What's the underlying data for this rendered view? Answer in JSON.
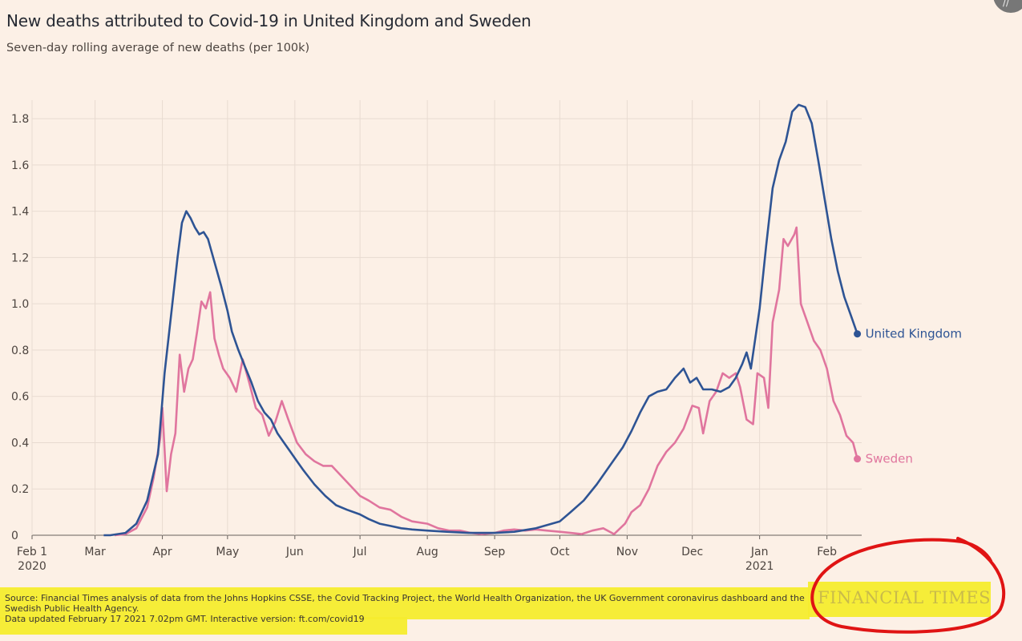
{
  "header": {
    "title": "New deaths attributed to Covid-19 in United Kingdom and Sweden",
    "subtitle": "Seven-day rolling average of new deaths (per 100k)"
  },
  "footer": {
    "source_line1": "Source: Financial Times analysis of data from the Johns Hopkins CSSE, the Covid Tracking Project, the World Health Organization, the UK Government coronavirus dashboard and the",
    "source_line2": "Swedish Public Health Agency.",
    "updated": "Data updated February 17 2021 7.02pm GMT. Interactive version: ft.com/covid19",
    "brand": "FINANCIAL TIMES"
  },
  "colors": {
    "uk": "#2e5494",
    "sweden": "#e0759e",
    "highlight": "#f6ec2e",
    "annotation_circle": "#e01414"
  },
  "icons": {
    "corner": "diagonal-lines-icon"
  },
  "chart_data": {
    "type": "line",
    "title": "New deaths attributed to Covid-19 in United Kingdom and Sweden",
    "subtitle": "Seven-day rolling average of new deaths (per 100k)",
    "xlabel": "",
    "ylabel": "",
    "x_range": [
      "2020-02-01",
      "2021-02-17"
    ],
    "ylim": [
      0,
      1.88
    ],
    "y_ticks": [
      0,
      0.2,
      0.4,
      0.6,
      0.8,
      1.0,
      1.2,
      1.4,
      1.6,
      1.8
    ],
    "y_tick_labels": [
      "0",
      "0.2",
      "0.4",
      "0.6",
      "0.8",
      "1.0",
      "1.2",
      "1.4",
      "1.6",
      "1.8"
    ],
    "x_ticks": [
      {
        "date": "2020-02-01",
        "label": "Feb 1",
        "label2": "2020"
      },
      {
        "date": "2020-03-01",
        "label": "Mar"
      },
      {
        "date": "2020-04-01",
        "label": "Apr"
      },
      {
        "date": "2020-05-01",
        "label": "May"
      },
      {
        "date": "2020-06-01",
        "label": "Jun"
      },
      {
        "date": "2020-07-01",
        "label": "Jul"
      },
      {
        "date": "2020-08-01",
        "label": "Aug"
      },
      {
        "date": "2020-09-01",
        "label": "Sep"
      },
      {
        "date": "2020-10-01",
        "label": "Oct"
      },
      {
        "date": "2020-11-01",
        "label": "Nov"
      },
      {
        "date": "2020-12-01",
        "label": "Dec"
      },
      {
        "date": "2021-01-01",
        "label": "Jan",
        "label2": "2021"
      },
      {
        "date": "2021-02-01",
        "label": "Feb"
      }
    ],
    "grid": true,
    "series": [
      {
        "name": "United Kingdom",
        "points": [
          [
            "2020-03-05",
            0
          ],
          [
            "2020-03-08",
            0
          ],
          [
            "2020-03-15",
            0.01
          ],
          [
            "2020-03-20",
            0.05
          ],
          [
            "2020-03-25",
            0.15
          ],
          [
            "2020-03-30",
            0.35
          ],
          [
            "2020-04-02",
            0.7
          ],
          [
            "2020-04-05",
            0.95
          ],
          [
            "2020-04-08",
            1.2
          ],
          [
            "2020-04-10",
            1.35
          ],
          [
            "2020-04-12",
            1.4
          ],
          [
            "2020-04-14",
            1.37
          ],
          [
            "2020-04-16",
            1.33
          ],
          [
            "2020-04-18",
            1.3
          ],
          [
            "2020-04-20",
            1.31
          ],
          [
            "2020-04-22",
            1.28
          ],
          [
            "2020-04-25",
            1.18
          ],
          [
            "2020-04-28",
            1.08
          ],
          [
            "2020-05-01",
            0.97
          ],
          [
            "2020-05-03",
            0.88
          ],
          [
            "2020-05-06",
            0.8
          ],
          [
            "2020-05-09",
            0.73
          ],
          [
            "2020-05-12",
            0.66
          ],
          [
            "2020-05-15",
            0.58
          ],
          [
            "2020-05-18",
            0.53
          ],
          [
            "2020-05-21",
            0.5
          ],
          [
            "2020-05-24",
            0.44
          ],
          [
            "2020-05-27",
            0.4
          ],
          [
            "2020-05-30",
            0.36
          ],
          [
            "2020-06-02",
            0.32
          ],
          [
            "2020-06-05",
            0.28
          ],
          [
            "2020-06-10",
            0.22
          ],
          [
            "2020-06-15",
            0.17
          ],
          [
            "2020-06-20",
            0.13
          ],
          [
            "2020-06-25",
            0.11
          ],
          [
            "2020-07-01",
            0.09
          ],
          [
            "2020-07-05",
            0.07
          ],
          [
            "2020-07-10",
            0.05
          ],
          [
            "2020-07-15",
            0.04
          ],
          [
            "2020-07-20",
            0.03
          ],
          [
            "2020-07-25",
            0.025
          ],
          [
            "2020-08-01",
            0.02
          ],
          [
            "2020-08-10",
            0.015
          ],
          [
            "2020-08-20",
            0.01
          ],
          [
            "2020-09-01",
            0.01
          ],
          [
            "2020-09-10",
            0.015
          ],
          [
            "2020-09-20",
            0.03
          ],
          [
            "2020-10-01",
            0.06
          ],
          [
            "2020-10-06",
            0.1
          ],
          [
            "2020-10-12",
            0.15
          ],
          [
            "2020-10-18",
            0.22
          ],
          [
            "2020-10-24",
            0.3
          ],
          [
            "2020-10-30",
            0.38
          ],
          [
            "2020-11-03",
            0.45
          ],
          [
            "2020-11-07",
            0.53
          ],
          [
            "2020-11-11",
            0.6
          ],
          [
            "2020-11-15",
            0.62
          ],
          [
            "2020-11-19",
            0.63
          ],
          [
            "2020-11-23",
            0.68
          ],
          [
            "2020-11-27",
            0.72
          ],
          [
            "2020-11-30",
            0.66
          ],
          [
            "2020-12-03",
            0.68
          ],
          [
            "2020-12-06",
            0.63
          ],
          [
            "2020-12-10",
            0.63
          ],
          [
            "2020-12-14",
            0.62
          ],
          [
            "2020-12-18",
            0.64
          ],
          [
            "2020-12-21",
            0.68
          ],
          [
            "2020-12-24",
            0.74
          ],
          [
            "2020-12-26",
            0.79
          ],
          [
            "2020-12-28",
            0.72
          ],
          [
            "2021-01-01",
            0.98
          ],
          [
            "2021-01-04",
            1.25
          ],
          [
            "2021-01-07",
            1.5
          ],
          [
            "2021-01-10",
            1.62
          ],
          [
            "2021-01-13",
            1.7
          ],
          [
            "2021-01-16",
            1.83
          ],
          [
            "2021-01-19",
            1.86
          ],
          [
            "2021-01-22",
            1.85
          ],
          [
            "2021-01-25",
            1.78
          ],
          [
            "2021-01-28",
            1.62
          ],
          [
            "2021-01-31",
            1.45
          ],
          [
            "2021-02-03",
            1.28
          ],
          [
            "2021-02-06",
            1.14
          ],
          [
            "2021-02-09",
            1.03
          ],
          [
            "2021-02-12",
            0.95
          ],
          [
            "2021-02-15",
            0.87
          ]
        ],
        "end_value": 0.87
      },
      {
        "name": "Sweden",
        "points": [
          [
            "2020-03-10",
            0
          ],
          [
            "2020-03-15",
            0.005
          ],
          [
            "2020-03-20",
            0.03
          ],
          [
            "2020-03-25",
            0.12
          ],
          [
            "2020-03-28",
            0.25
          ],
          [
            "2020-03-31",
            0.42
          ],
          [
            "2020-04-01",
            0.55
          ],
          [
            "2020-04-03",
            0.19
          ],
          [
            "2020-04-05",
            0.35
          ],
          [
            "2020-04-07",
            0.44
          ],
          [
            "2020-04-09",
            0.78
          ],
          [
            "2020-04-11",
            0.62
          ],
          [
            "2020-04-13",
            0.72
          ],
          [
            "2020-04-15",
            0.76
          ],
          [
            "2020-04-17",
            0.88
          ],
          [
            "2020-04-19",
            1.01
          ],
          [
            "2020-04-21",
            0.98
          ],
          [
            "2020-04-23",
            1.05
          ],
          [
            "2020-04-25",
            0.85
          ],
          [
            "2020-04-27",
            0.78
          ],
          [
            "2020-04-29",
            0.72
          ],
          [
            "2020-05-02",
            0.68
          ],
          [
            "2020-05-05",
            0.62
          ],
          [
            "2020-05-08",
            0.76
          ],
          [
            "2020-05-11",
            0.66
          ],
          [
            "2020-05-14",
            0.55
          ],
          [
            "2020-05-17",
            0.52
          ],
          [
            "2020-05-20",
            0.43
          ],
          [
            "2020-05-23",
            0.49
          ],
          [
            "2020-05-26",
            0.58
          ],
          [
            "2020-05-29",
            0.5
          ],
          [
            "2020-06-02",
            0.4
          ],
          [
            "2020-06-06",
            0.35
          ],
          [
            "2020-06-10",
            0.32
          ],
          [
            "2020-06-14",
            0.3
          ],
          [
            "2020-06-18",
            0.3
          ],
          [
            "2020-06-22",
            0.26
          ],
          [
            "2020-06-26",
            0.22
          ],
          [
            "2020-07-01",
            0.17
          ],
          [
            "2020-07-05",
            0.15
          ],
          [
            "2020-07-10",
            0.12
          ],
          [
            "2020-07-15",
            0.11
          ],
          [
            "2020-07-20",
            0.08
          ],
          [
            "2020-07-25",
            0.06
          ],
          [
            "2020-08-01",
            0.05
          ],
          [
            "2020-08-06",
            0.03
          ],
          [
            "2020-08-11",
            0.02
          ],
          [
            "2020-08-16",
            0.02
          ],
          [
            "2020-08-21",
            0.01
          ],
          [
            "2020-08-26",
            0.005
          ],
          [
            "2020-09-01",
            0.01
          ],
          [
            "2020-09-05",
            0.02
          ],
          [
            "2020-09-10",
            0.025
          ],
          [
            "2020-09-15",
            0.02
          ],
          [
            "2020-09-20",
            0.025
          ],
          [
            "2020-09-25",
            0.02
          ],
          [
            "2020-10-01",
            0.015
          ],
          [
            "2020-10-06",
            0.01
          ],
          [
            "2020-10-11",
            0.005
          ],
          [
            "2020-10-16",
            0.02
          ],
          [
            "2020-10-21",
            0.03
          ],
          [
            "2020-10-26",
            0.005
          ],
          [
            "2020-10-31",
            0.05
          ],
          [
            "2020-11-03",
            0.1
          ],
          [
            "2020-11-07",
            0.13
          ],
          [
            "2020-11-11",
            0.2
          ],
          [
            "2020-11-15",
            0.3
          ],
          [
            "2020-11-19",
            0.36
          ],
          [
            "2020-11-23",
            0.4
          ],
          [
            "2020-11-27",
            0.46
          ],
          [
            "2020-12-01",
            0.56
          ],
          [
            "2020-12-04",
            0.55
          ],
          [
            "2020-12-06",
            0.44
          ],
          [
            "2020-12-09",
            0.58
          ],
          [
            "2020-12-12",
            0.62
          ],
          [
            "2020-12-15",
            0.7
          ],
          [
            "2020-12-18",
            0.68
          ],
          [
            "2020-12-21",
            0.7
          ],
          [
            "2020-12-23",
            0.64
          ],
          [
            "2020-12-26",
            0.5
          ],
          [
            "2020-12-29",
            0.48
          ],
          [
            "2020-12-31",
            0.7
          ],
          [
            "2021-01-03",
            0.68
          ],
          [
            "2021-01-05",
            0.55
          ],
          [
            "2021-01-07",
            0.92
          ],
          [
            "2021-01-10",
            1.06
          ],
          [
            "2021-01-12",
            1.28
          ],
          [
            "2021-01-14",
            1.25
          ],
          [
            "2021-01-17",
            1.3
          ],
          [
            "2021-01-18",
            1.33
          ],
          [
            "2021-01-20",
            1.0
          ],
          [
            "2021-01-23",
            0.92
          ],
          [
            "2021-01-26",
            0.84
          ],
          [
            "2021-01-29",
            0.8
          ],
          [
            "2021-02-01",
            0.72
          ],
          [
            "2021-02-04",
            0.58
          ],
          [
            "2021-02-07",
            0.52
          ],
          [
            "2021-02-10",
            0.43
          ],
          [
            "2021-02-13",
            0.4
          ],
          [
            "2021-02-15",
            0.33
          ]
        ],
        "end_value": 0.33
      }
    ]
  }
}
